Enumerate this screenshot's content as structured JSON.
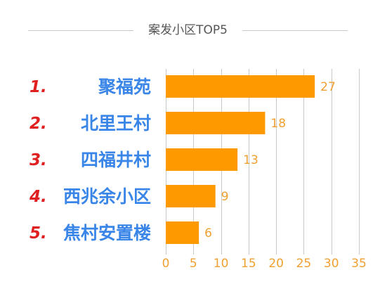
{
  "title": "案发小区TOP5",
  "colors": {
    "bar": "#FF9900",
    "value_label": "#F0A030",
    "tick_label": "#F0A030",
    "rank": "#E02020",
    "category": "#3A86E8",
    "grid": "#C8C8C8"
  },
  "chart_data": {
    "type": "bar",
    "orientation": "horizontal",
    "title": "案发小区TOP5",
    "ranks": [
      "1.",
      "2.",
      "3.",
      "4.",
      "5."
    ],
    "categories": [
      "聚福苑",
      "北里王村",
      "四福井村",
      "西兆余小区",
      "焦村安置楼"
    ],
    "values": [
      27,
      18,
      13,
      9,
      6
    ],
    "xlim": [
      0,
      35
    ],
    "xticks": [
      "0",
      "5",
      "10",
      "15",
      "20",
      "25",
      "30",
      "35"
    ],
    "grid": true,
    "xlabel": "",
    "ylabel": ""
  }
}
